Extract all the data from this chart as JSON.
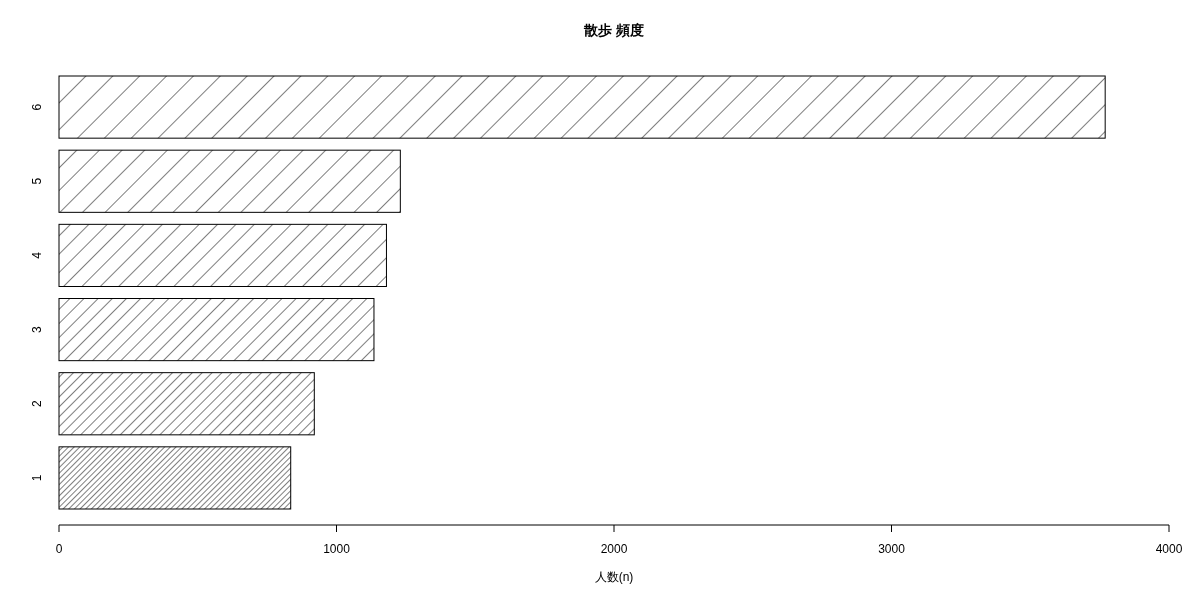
{
  "chart_data": {
    "type": "bar",
    "orientation": "horizontal",
    "title": "散歩 頻度",
    "xlabel": "人数(n)",
    "categories": [
      "6",
      "5",
      "4",
      "3",
      "2",
      "1"
    ],
    "values": [
      3770,
      1230,
      1180,
      1135,
      920,
      835
    ],
    "color": "#000000",
    "xlim": [
      0,
      4000
    ],
    "xticks": [
      0,
      1000,
      2000,
      3000,
      4000
    ]
  }
}
